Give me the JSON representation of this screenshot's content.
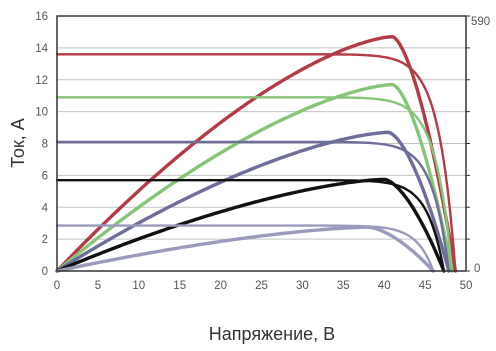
{
  "chart_data": {
    "type": "line",
    "xlabel": "Напряжение, В",
    "ylabel": "Ток, А",
    "xlim": [
      0,
      50
    ],
    "ylim": [
      0,
      16
    ],
    "x_ticks": [
      "0",
      "5",
      "10",
      "15",
      "20",
      "25",
      "30",
      "35",
      "40",
      "45",
      "50"
    ],
    "y_ticks": [
      "0",
      "2",
      "4",
      "6",
      "8",
      "10",
      "12",
      "14",
      "16"
    ],
    "right_axis": {
      "top_label": "590",
      "bottom_label": "0"
    },
    "grid": true,
    "series": [
      {
        "color": "#b33a46",
        "curve": "iv",
        "isc": 13.6,
        "voc": 48.7
      },
      {
        "color": "#b33a46",
        "curve": "power",
        "peak_x": 41.0,
        "peak_y": 14.7,
        "end_x": 48.7
      },
      {
        "color": "#86c476",
        "curve": "iv",
        "isc": 10.9,
        "voc": 48.3
      },
      {
        "color": "#86c476",
        "curve": "power",
        "peak_x": 41.0,
        "peak_y": 11.7,
        "end_x": 48.3
      },
      {
        "color": "#6d6d9c",
        "curve": "iv",
        "isc": 8.1,
        "voc": 47.9
      },
      {
        "color": "#6d6d9c",
        "curve": "power",
        "peak_x": 40.5,
        "peak_y": 8.7,
        "end_x": 47.9
      },
      {
        "color": "#111111",
        "curve": "iv",
        "isc": 5.7,
        "voc": 47.3
      },
      {
        "color": "#111111",
        "curve": "power",
        "peak_x": 40.0,
        "peak_y": 5.75,
        "end_x": 47.3
      },
      {
        "color": "#9a9abd",
        "curve": "iv",
        "isc": 2.85,
        "voc": 46.0
      },
      {
        "color": "#9a9abd",
        "curve": "power",
        "peak_x": 38.0,
        "peak_y": 2.75,
        "end_x": 46.0
      }
    ]
  }
}
